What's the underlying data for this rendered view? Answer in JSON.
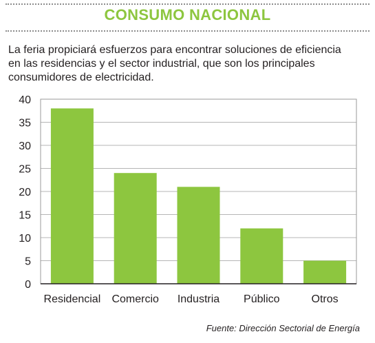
{
  "header": {
    "title": "CONSUMO NACIONAL",
    "title_color": "#8dc63f"
  },
  "intro_text": "La feria propiciará esfuerzos para encontrar soluciones de eficiencia en las residencias y el sector industrial, que son los principales consumidores de electricidad.",
  "chart_data": {
    "type": "bar",
    "categories": [
      "Residencial",
      "Comercio",
      "Industria",
      "Público",
      "Otros"
    ],
    "values": [
      38,
      24,
      21,
      12,
      5
    ],
    "yticks": [
      "0",
      "5",
      "10",
      "15",
      "20",
      "25",
      "30",
      "35",
      "40"
    ],
    "ylim": [
      0,
      40
    ],
    "grid": true,
    "title": "",
    "xlabel": "",
    "ylabel": "",
    "bar_color": "#8dc63f"
  },
  "source": "Fuente: Dirección Sectorial de Energía"
}
